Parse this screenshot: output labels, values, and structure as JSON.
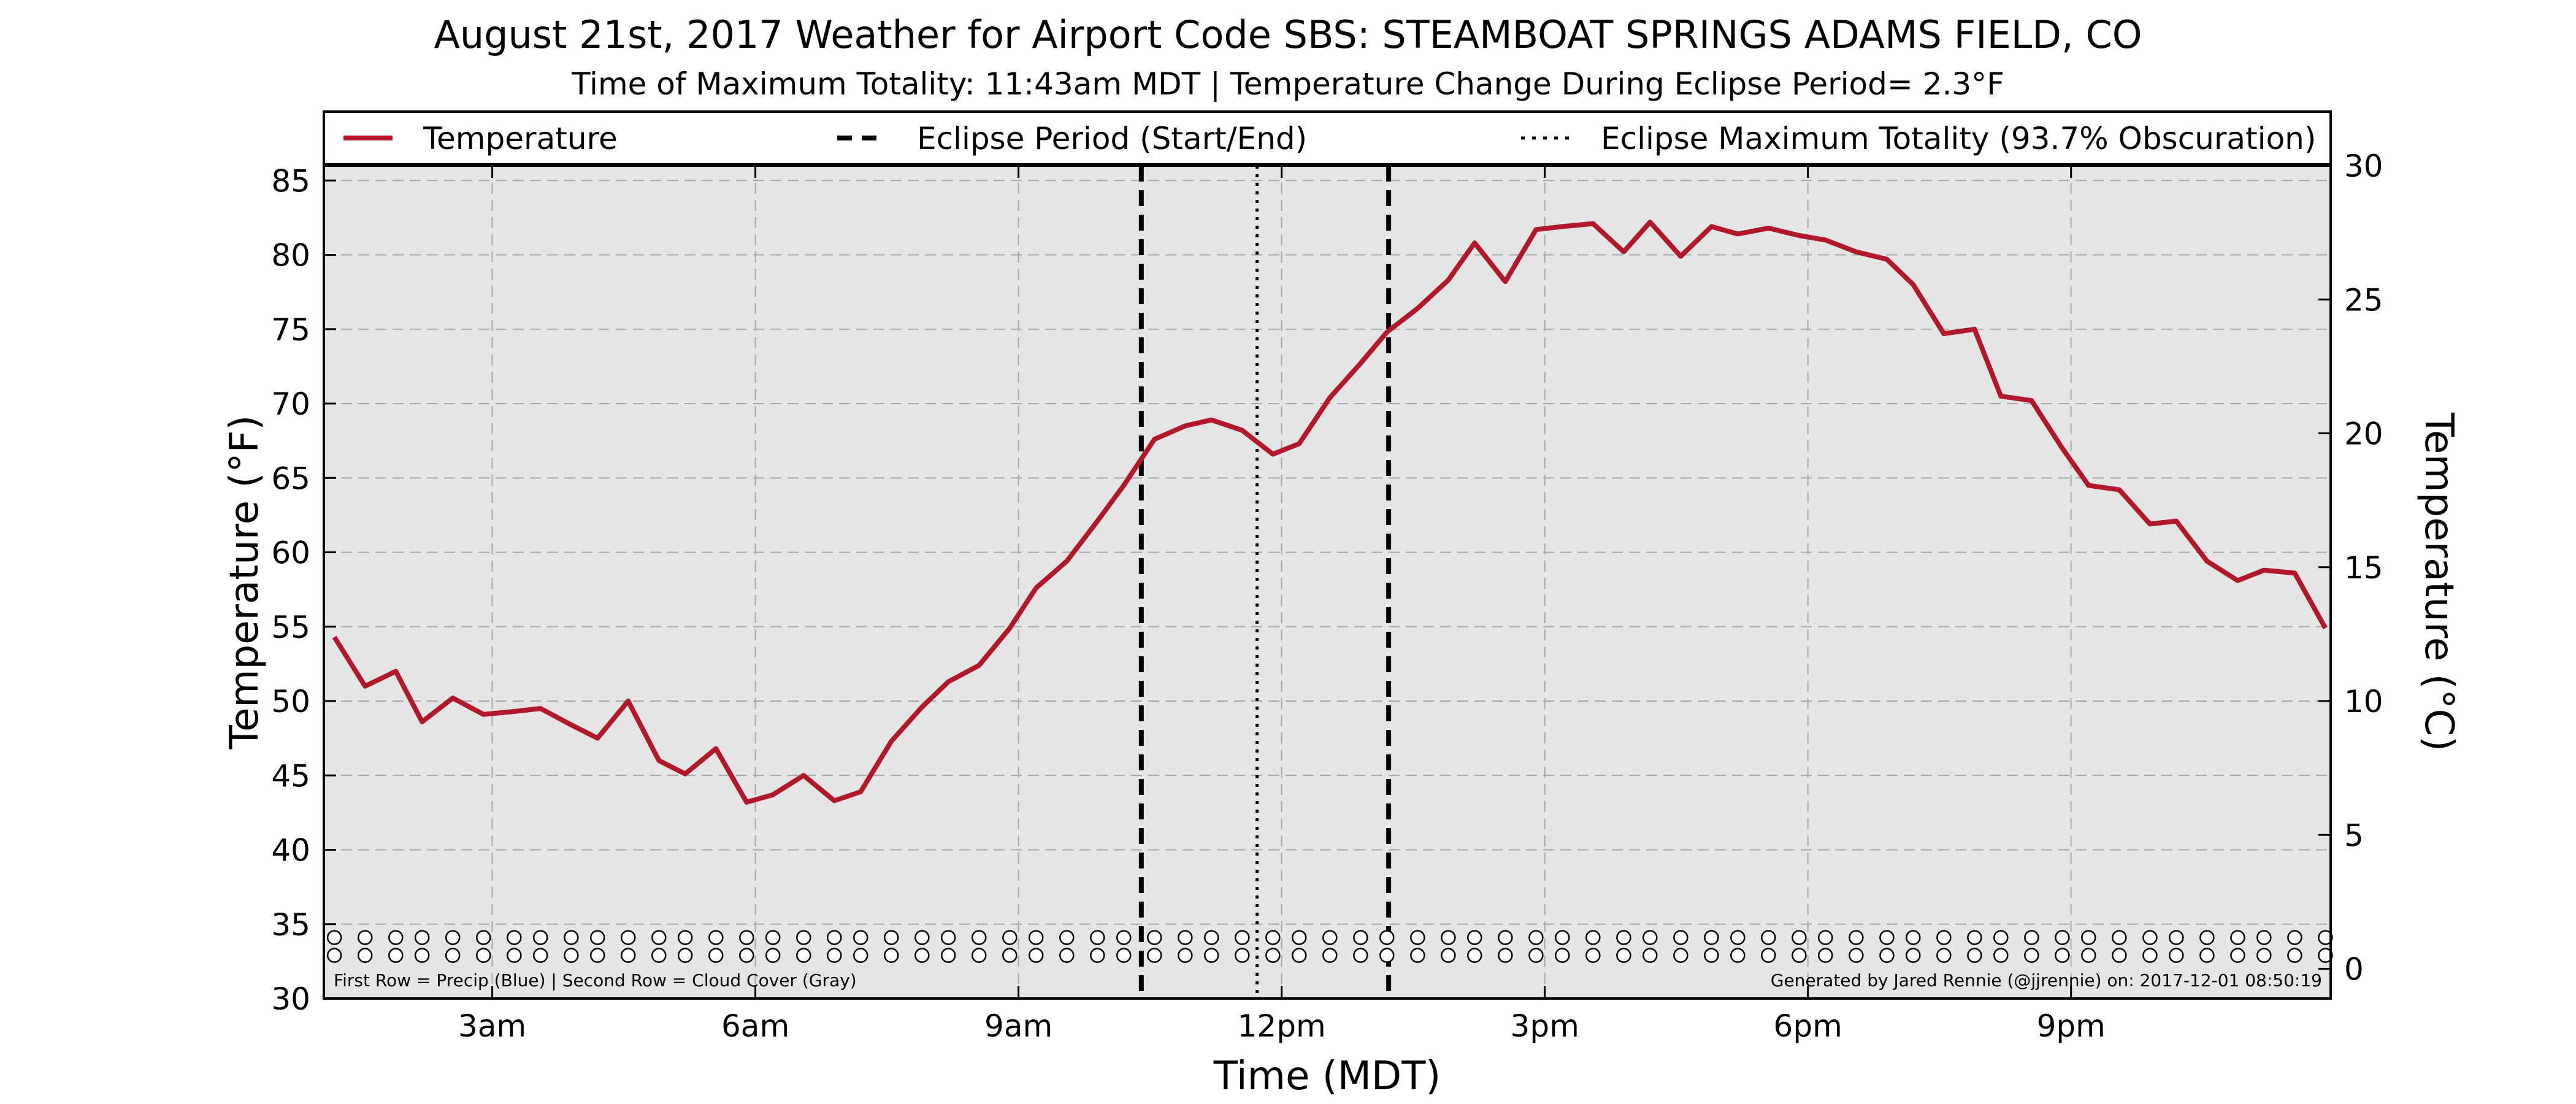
{
  "chart_data": {
    "type": "line",
    "title": "August 21st, 2017 Weather for Airport Code SBS: STEAMBOAT SPRINGS ADAMS FIELD, CO",
    "subtitle": "Time of Maximum Totality: 11:43am MDT | Temperature Change During Eclipse Period= 2.3°F",
    "xlabel": "Time (MDT)",
    "ylabel": "Temperature (°F)",
    "ylabel_right": "Temperature (°C)",
    "xlim": [
      1.08,
      23.96
    ],
    "ylim": [
      30,
      86
    ],
    "ylim_right": [
      -1.11,
      30
    ],
    "x_ticks": [
      {
        "x": 3,
        "label": "3am"
      },
      {
        "x": 6,
        "label": "6am"
      },
      {
        "x": 9,
        "label": "9am"
      },
      {
        "x": 12,
        "label": "12pm"
      },
      {
        "x": 15,
        "label": "3pm"
      },
      {
        "x": 18,
        "label": "6pm"
      },
      {
        "x": 21,
        "label": "9pm"
      }
    ],
    "y_ticks": [
      30,
      35,
      40,
      45,
      50,
      55,
      60,
      65,
      70,
      75,
      80,
      85
    ],
    "y_ticks_right": [
      0,
      5,
      10,
      15,
      20,
      25,
      30
    ],
    "grid": true,
    "legend": {
      "placement": "top",
      "entries": [
        {
          "label": "Temperature",
          "style": "solid",
          "color": "#b2182b"
        },
        {
          "label": "Eclipse Period (Start/End)",
          "style": "dashed",
          "color": "#000000"
        },
        {
          "label": "Eclipse Maximum Totality (93.7% Obscuration)",
          "style": "dotted",
          "color": "#000000"
        }
      ]
    },
    "series": [
      {
        "name": "Temperature",
        "color": "#b2182b",
        "x": [
          1.2,
          1.55,
          1.9,
          2.2,
          2.55,
          2.9,
          3.25,
          3.55,
          3.9,
          4.2,
          4.55,
          4.9,
          5.2,
          5.55,
          5.9,
          6.2,
          6.55,
          6.9,
          7.2,
          7.55,
          7.9,
          8.2,
          8.55,
          8.9,
          9.2,
          9.55,
          9.9,
          10.2,
          10.55,
          10.9,
          11.2,
          11.55,
          11.9,
          12.2,
          12.55,
          12.9,
          13.2,
          13.55,
          13.9,
          14.2,
          14.55,
          14.9,
          15.2,
          15.55,
          15.9,
          16.2,
          16.55,
          16.9,
          17.2,
          17.55,
          17.9,
          18.2,
          18.55,
          18.9,
          19.2,
          19.55,
          19.9,
          20.2,
          20.55,
          20.9,
          21.2,
          21.55,
          21.9,
          22.2,
          22.55,
          22.9,
          23.2,
          23.55,
          23.9
        ],
        "y": [
          54.3,
          51.0,
          52.0,
          48.6,
          50.2,
          49.1,
          49.3,
          49.5,
          48.4,
          47.5,
          50.0,
          46.0,
          45.1,
          46.8,
          43.2,
          43.7,
          45.0,
          43.3,
          43.9,
          47.3,
          49.6,
          51.3,
          52.4,
          54.9,
          57.6,
          59.4,
          62.1,
          64.5,
          67.6,
          68.5,
          68.9,
          68.2,
          66.6,
          67.3,
          70.4,
          72.7,
          74.8,
          76.4,
          78.3,
          80.8,
          78.2,
          81.7,
          81.9,
          82.1,
          80.2,
          82.2,
          79.9,
          81.9,
          81.4,
          81.8,
          81.3,
          81.0,
          80.2,
          79.7,
          78.0,
          74.7,
          75.0,
          70.5,
          70.2,
          67.0,
          64.5,
          64.2,
          61.9,
          62.1,
          59.4,
          58.1,
          58.8,
          58.6,
          54.9
        ]
      }
    ],
    "eclipse": {
      "start": 10.4,
      "end": 13.22,
      "max_totality": 11.72
    },
    "marker_rows": {
      "first_row": {
        "y": 34.1,
        "color": "#0000ff",
        "values": "none"
      },
      "second_row": {
        "y": 32.9,
        "color": "#888888",
        "values": "clear"
      }
    },
    "notes": {
      "left": "First Row = Precip (Blue) | Second Row = Cloud Cover (Gray)",
      "right": "Generated by Jared Rennie (@jjrennie) on: 2017-12-01 08:50:19"
    }
  }
}
